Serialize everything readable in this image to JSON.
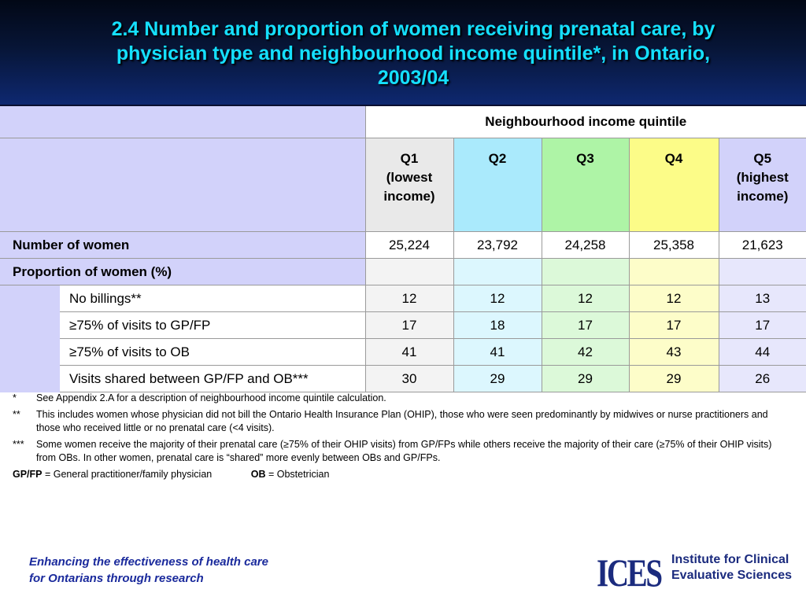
{
  "title": {
    "line1": "2.4  Number and proportion of women receiving prenatal care, by",
    "line2": "physician type and neighbourhood income quintile*, in Ontario,",
    "line3": "2003/04"
  },
  "table": {
    "group_header": "Neighbourhood income quintile",
    "quintiles": [
      {
        "label": "Q1",
        "sub1": "(lowest",
        "sub2": "income)"
      },
      {
        "label": "Q2",
        "sub1": "",
        "sub2": ""
      },
      {
        "label": "Q3",
        "sub1": "",
        "sub2": ""
      },
      {
        "label": "Q4",
        "sub1": "",
        "sub2": ""
      },
      {
        "label": "Q5",
        "sub1": "(highest",
        "sub2": "income)"
      }
    ],
    "number_row": {
      "label": "Number of women",
      "values": [
        "25,224",
        "23,792",
        "24,258",
        "25,358",
        "21,623"
      ]
    },
    "proportion_header": "Proportion of women (%)",
    "rows": [
      {
        "label": "No billings**",
        "values": [
          "12",
          "12",
          "12",
          "12",
          "13"
        ]
      },
      {
        "label": "≥75% of visits to GP/FP",
        "values": [
          "17",
          "18",
          "17",
          "17",
          "17"
        ]
      },
      {
        "label": "≥75% of visits to OB",
        "values": [
          "41",
          "41",
          "42",
          "43",
          "44"
        ]
      },
      {
        "label": "Visits shared between GP/FP and OB***",
        "values": [
          "30",
          "29",
          "29",
          "29",
          "26"
        ]
      }
    ],
    "colors": {
      "Q1": "#e9e9e9",
      "Q2": "#aaeafc",
      "Q3": "#aef4a6",
      "Q4": "#fcfc88",
      "Q5": "#d2d2fa"
    }
  },
  "footnotes": [
    {
      "mark": "*",
      "text": "See Appendix 2.A for a description of neighbourhood income quintile calculation."
    },
    {
      "mark": "**",
      "text": "This includes women whose physician did not bill the Ontario Health Insurance Plan (OHIP), those who were seen predominantly by midwives or nurse practitioners and those who received little or no prenatal care (<4 visits)."
    },
    {
      "mark": "***",
      "text": "Some women receive the majority of their prenatal care (≥75% of their OHIP visits) from GP/FPs while others receive the majority of their care (≥75% of their OHIP visits) from OBs. In other women, prenatal care is “shared” more evenly between OBs and GP/FPs."
    }
  ],
  "legend": {
    "gpfp_abbr": "GP/FP",
    "gpfp_text": " = General practitioner/family physician",
    "ob_abbr": "OB",
    "ob_text": " = Obstetrician"
  },
  "footer": {
    "tagline1": "Enhancing the effectiveness of health care",
    "tagline2": "for Ontarians through research",
    "logo_mark": "ICES",
    "logo_line1": "Institute for Clinical",
    "logo_line2": "Evaluative Sciences"
  }
}
